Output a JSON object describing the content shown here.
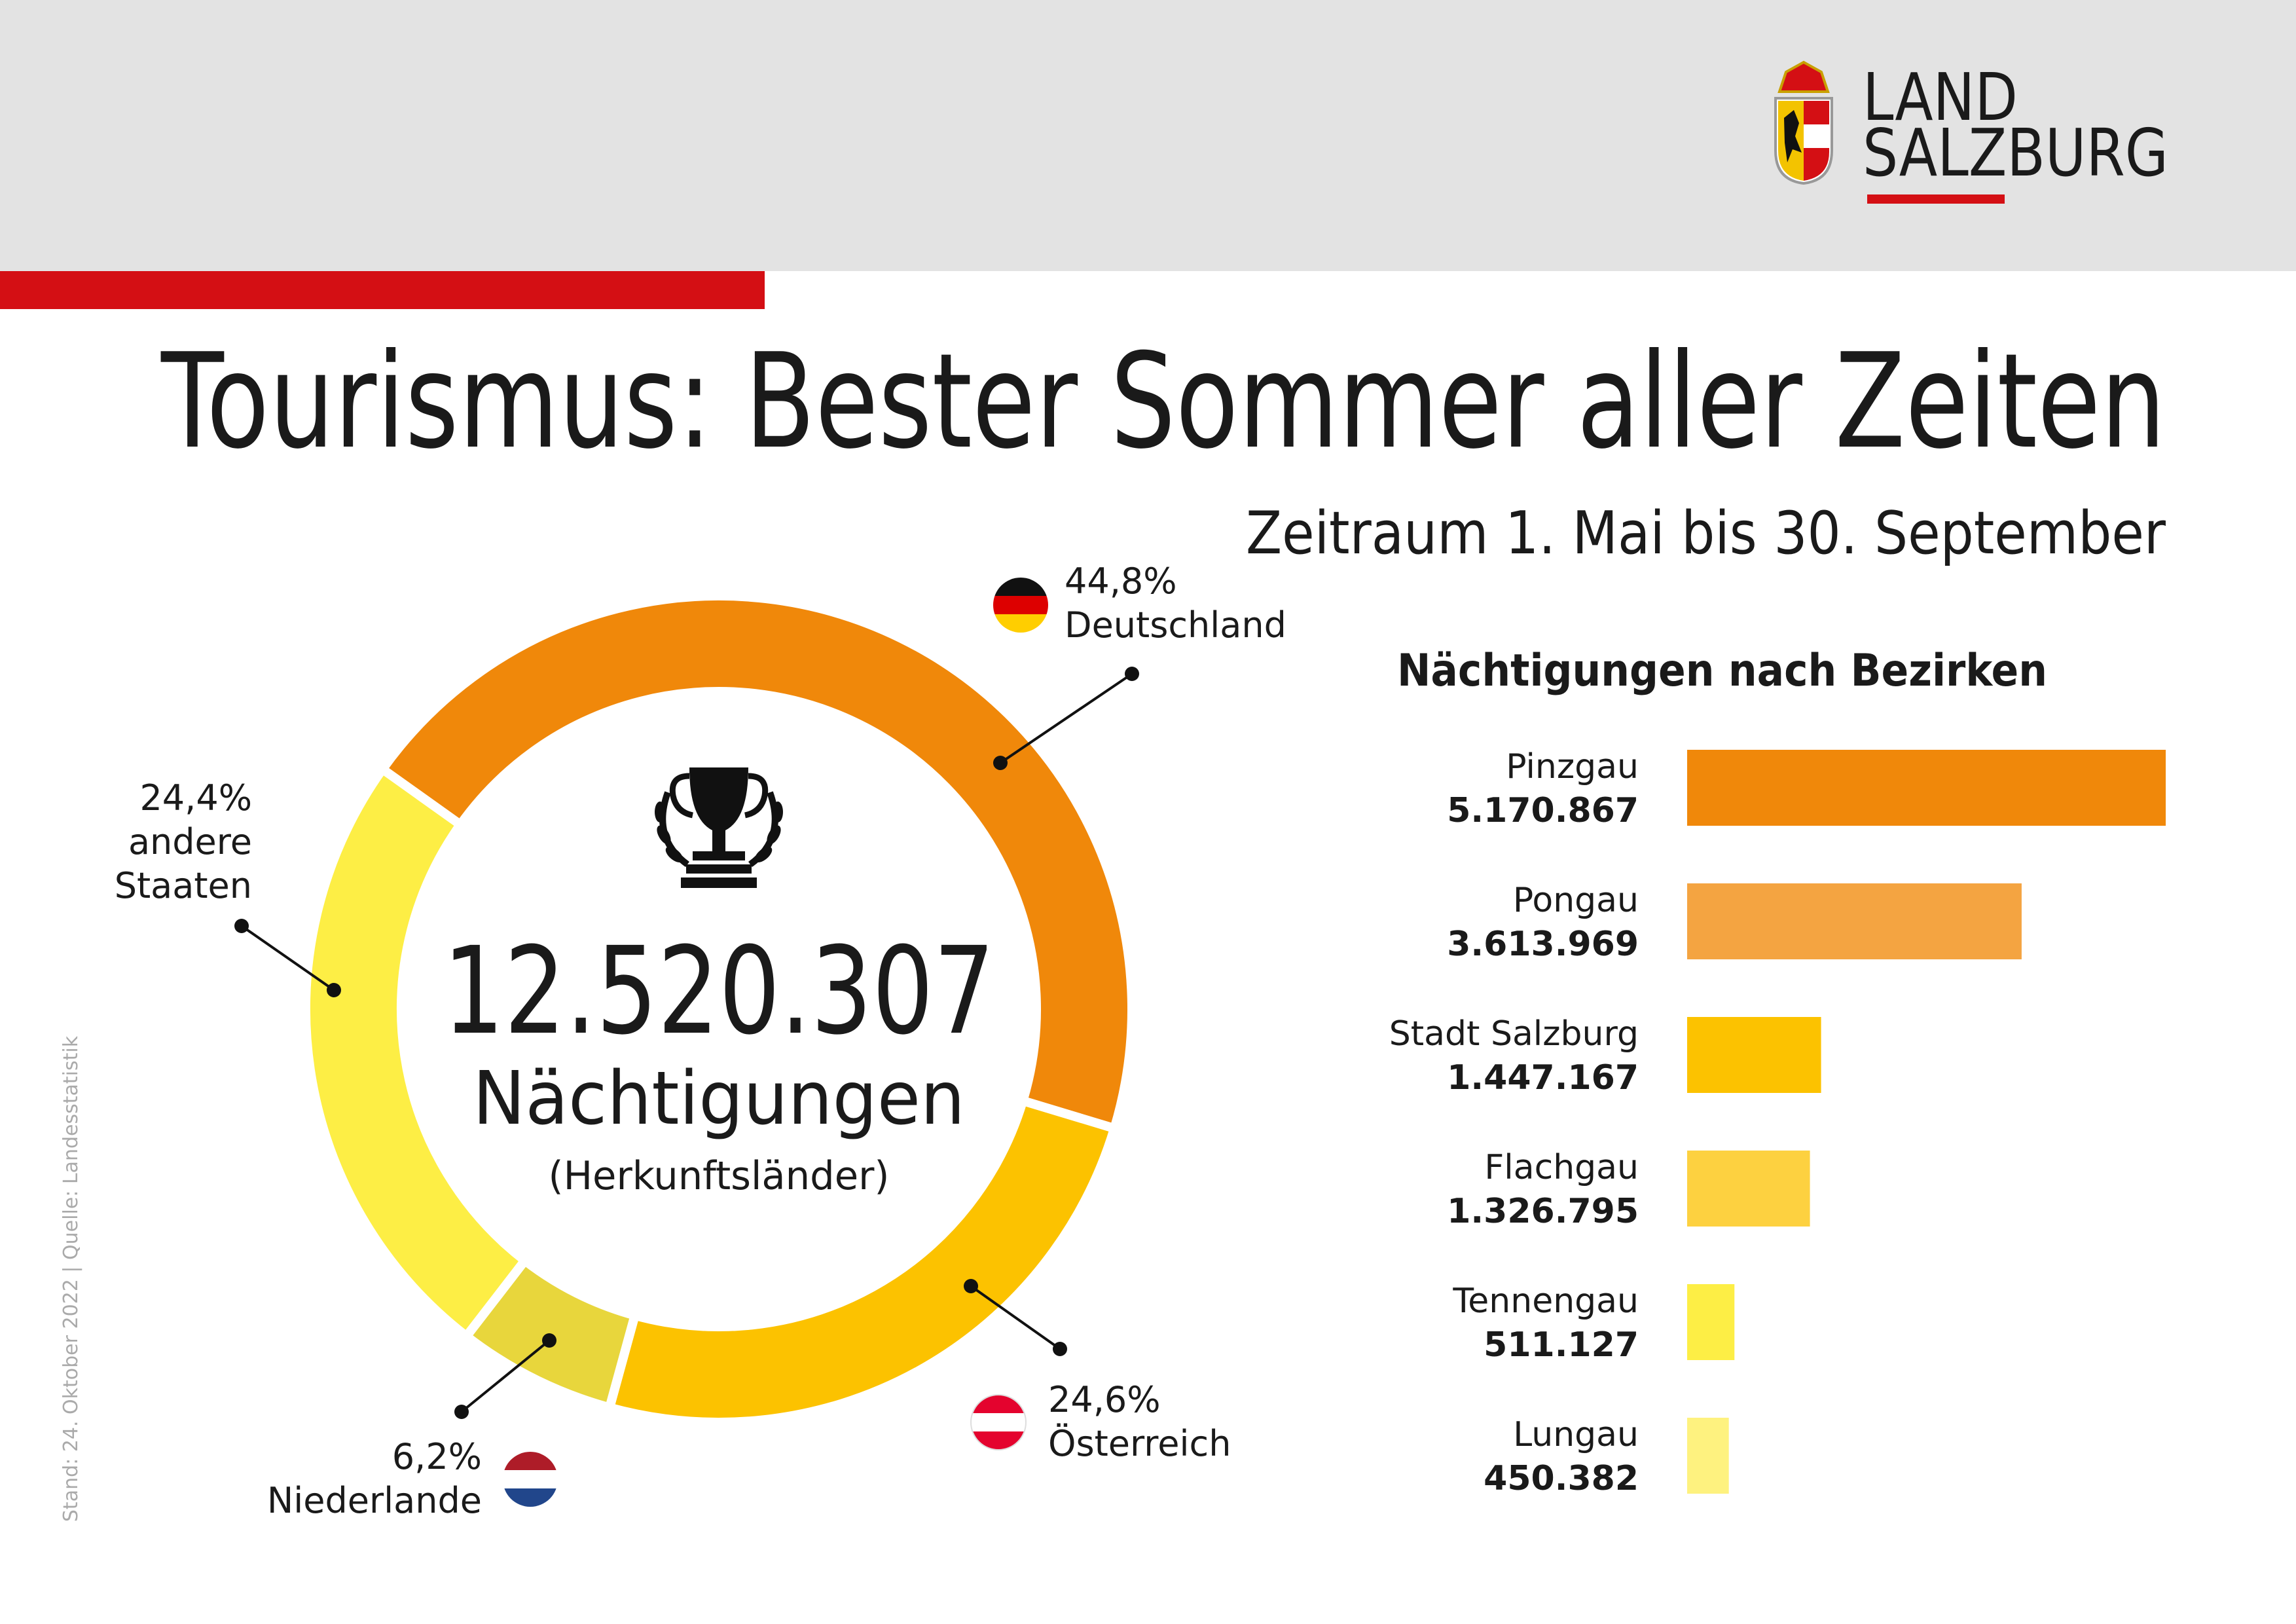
{
  "header": {
    "logo": [
      "LAND",
      "SALZBURG"
    ]
  },
  "title": "Tourismus: Bester Sommer aller Zeiten",
  "subtitle": "Zeitraum 1. Mai bis 30. September",
  "footnote": "Stand: 24. Oktober 2022 | Quelle: Landesstatistik",
  "chart_data": [
    {
      "type": "pie",
      "categories": [
        "Deutschland",
        "Österreich",
        "Niederlande",
        "andere Staaten"
      ],
      "values": [
        44.8,
        24.6,
        6.2,
        24.4
      ],
      "value_labels": [
        "44,8%",
        "24,6%",
        "6,2%",
        "24,4%"
      ],
      "colors": [
        "#f0880a",
        "#fcc200",
        "#e8d63c",
        "#fdee45"
      ],
      "center_lines": [
        "12.520.307",
        "Nächtigungen",
        "(Herkunftsländer)"
      ]
    },
    {
      "type": "bar",
      "title": "Nächtigungen nach Bezirken",
      "categories": [
        "Pinzgau",
        "Pongau",
        "Stadt Salzburg",
        "Flachgau",
        "Tennengau",
        "Lungau"
      ],
      "values": [
        5170867,
        3613969,
        1447167,
        1326795,
        511127,
        450382
      ],
      "value_labels": [
        "5.170.867",
        "3.613.969",
        "1.447.167",
        "1.326.795",
        "511.127",
        "450.382"
      ],
      "colors": [
        "#f0880a",
        "#f4a441",
        "#fcc200",
        "#fdd140",
        "#fdee45",
        "#fef27f"
      ]
    }
  ]
}
